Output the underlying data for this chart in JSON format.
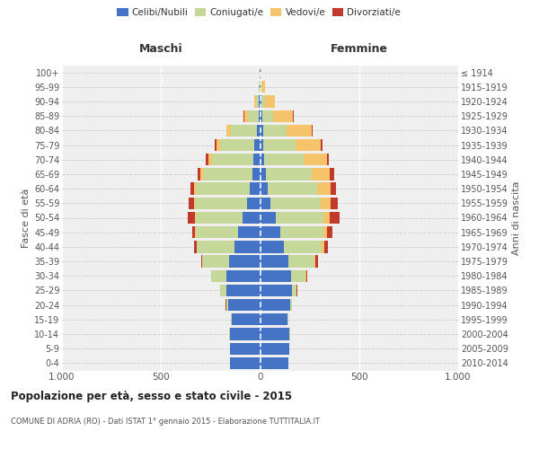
{
  "age_groups": [
    "0-4",
    "5-9",
    "10-14",
    "15-19",
    "20-24",
    "25-29",
    "30-34",
    "35-39",
    "40-44",
    "45-49",
    "50-54",
    "55-59",
    "60-64",
    "65-69",
    "70-74",
    "75-79",
    "80-84",
    "85-89",
    "90-94",
    "95-99",
    "100+"
  ],
  "birth_years": [
    "2010-2014",
    "2005-2009",
    "2000-2004",
    "1995-1999",
    "1990-1994",
    "1985-1989",
    "1980-1984",
    "1975-1979",
    "1970-1974",
    "1965-1969",
    "1960-1964",
    "1955-1959",
    "1950-1954",
    "1945-1949",
    "1940-1944",
    "1935-1939",
    "1930-1934",
    "1925-1929",
    "1920-1924",
    "1915-1919",
    "≤ 1914"
  ],
  "maschi": {
    "celibi": [
      152,
      153,
      153,
      143,
      162,
      172,
      168,
      155,
      130,
      112,
      88,
      65,
      50,
      38,
      32,
      28,
      18,
      8,
      5,
      3,
      2
    ],
    "coniugati": [
      0,
      1,
      2,
      5,
      10,
      28,
      78,
      138,
      188,
      212,
      238,
      262,
      275,
      252,
      212,
      172,
      128,
      55,
      15,
      4,
      1
    ],
    "vedovi": [
      0,
      0,
      0,
      0,
      0,
      0,
      0,
      1,
      2,
      3,
      5,
      8,
      10,
      12,
      18,
      20,
      22,
      18,
      10,
      2,
      0
    ],
    "divorziati": [
      0,
      0,
      0,
      0,
      1,
      2,
      3,
      5,
      15,
      15,
      35,
      25,
      18,
      15,
      12,
      10,
      3,
      2,
      0,
      0,
      0
    ]
  },
  "femmine": {
    "nubili": [
      143,
      148,
      148,
      138,
      152,
      162,
      158,
      142,
      122,
      102,
      78,
      52,
      38,
      28,
      22,
      18,
      15,
      10,
      5,
      4,
      2
    ],
    "coniugate": [
      0,
      1,
      2,
      4,
      10,
      22,
      72,
      132,
      188,
      218,
      242,
      252,
      252,
      232,
      198,
      162,
      118,
      58,
      20,
      5,
      1
    ],
    "vedove": [
      0,
      0,
      0,
      0,
      0,
      1,
      3,
      7,
      13,
      18,
      33,
      52,
      68,
      92,
      118,
      128,
      128,
      98,
      50,
      15,
      2
    ],
    "divorziate": [
      0,
      0,
      0,
      0,
      1,
      2,
      4,
      10,
      20,
      25,
      50,
      35,
      25,
      20,
      10,
      8,
      5,
      3,
      2,
      0,
      0
    ]
  },
  "colors": {
    "celibi": "#4472C4",
    "coniugati": "#C5D89A",
    "vedovi": "#F5C46A",
    "divorziati": "#C0392B"
  },
  "title": "Popolazione per età, sesso e stato civile - 2015",
  "subtitle": "COMUNE DI ADRIA (RO) - Dati ISTAT 1° gennaio 2015 - Elaborazione TUTTITALIA.IT",
  "xlabel_maschi": "Maschi",
  "xlabel_femmine": "Femmine",
  "ylabel": "Fasce di età",
  "ylabel_right": "Anni di nascita",
  "xlim": 1000,
  "background_color": "#efefef"
}
